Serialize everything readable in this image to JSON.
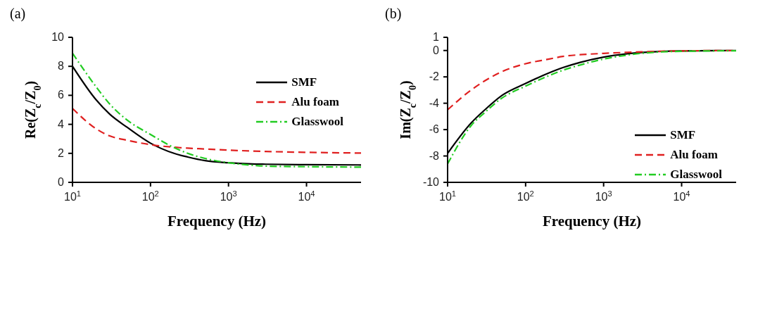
{
  "chart_data": [
    {
      "type": "line",
      "title": "(a)",
      "xlabel": "Frequency (Hz)",
      "ylabel": "Re(Z$_{c}$/Z$_{0}$)",
      "log": "x",
      "legend": "top right",
      "marker": "none",
      "xlim": [
        10,
        50000
      ],
      "xticks": [
        {
          "value": 10,
          "label": "10$^{1}$"
        },
        {
          "value": 100,
          "label": "10$^{2}$"
        },
        {
          "value": 1000,
          "label": "10$^{3}$"
        },
        {
          "value": 10000,
          "label": "10$^{4}$"
        }
      ],
      "ylim": [
        0,
        10
      ],
      "yticks": [
        0,
        2,
        4,
        6,
        8,
        10
      ],
      "x": [
        10,
        20,
        30,
        50,
        100,
        200,
        300,
        500,
        1000,
        2000,
        3000,
        10000,
        50000
      ],
      "series": [
        {
          "name": "SMF",
          "color": "#000000",
          "line_style": "solid",
          "values": [
            8.0,
            5.7,
            4.7,
            3.8,
            2.7,
            2.0,
            1.75,
            1.5,
            1.35,
            1.27,
            1.25,
            1.22,
            1.2
          ]
        },
        {
          "name": "Alu foam",
          "color": "#e02020",
          "line_style": "dashed",
          "values": [
            5.1,
            3.7,
            3.2,
            2.9,
            2.6,
            2.42,
            2.36,
            2.3,
            2.22,
            2.16,
            2.13,
            2.07,
            2.02
          ]
        },
        {
          "name": "Glasswool",
          "color": "#22cc22",
          "line_style": "dashdot",
          "values": [
            8.9,
            6.6,
            5.4,
            4.3,
            3.3,
            2.4,
            2.0,
            1.65,
            1.35,
            1.18,
            1.12,
            1.08,
            1.05
          ]
        }
      ]
    },
    {
      "type": "line",
      "title": "(b)",
      "xlabel": "Frequency (Hz)",
      "ylabel": "Im(Z$_{c}$/Z$_{0}$)",
      "log": "x",
      "legend": "bottom right",
      "marker": "none",
      "xlim": [
        10,
        50000
      ],
      "xticks": [
        {
          "value": 10,
          "label": "10$^{1}$"
        },
        {
          "value": 100,
          "label": "10$^{2}$"
        },
        {
          "value": 1000,
          "label": "10$^{3}$"
        },
        {
          "value": 10000,
          "label": "10$^{4}$"
        }
      ],
      "ylim": [
        -10,
        1
      ],
      "yticks": [
        -10,
        -8,
        -6,
        -4,
        -2,
        0,
        1
      ],
      "x": [
        10,
        20,
        30,
        50,
        100,
        200,
        300,
        500,
        1000,
        2000,
        3000,
        5000,
        10000,
        50000
      ],
      "series": [
        {
          "name": "SMF",
          "color": "#000000",
          "line_style": "solid",
          "values": [
            -7.8,
            -5.5,
            -4.5,
            -3.4,
            -2.5,
            -1.7,
            -1.3,
            -0.9,
            -0.5,
            -0.25,
            -0.15,
            -0.08,
            -0.03,
            0
          ]
        },
        {
          "name": "Alu foam",
          "color": "#e02020",
          "line_style": "dashed",
          "values": [
            -4.5,
            -3.0,
            -2.3,
            -1.6,
            -1.0,
            -0.65,
            -0.45,
            -0.32,
            -0.22,
            -0.14,
            -0.1,
            -0.06,
            -0.03,
            0
          ]
        },
        {
          "name": "Glasswool",
          "color": "#22cc22",
          "line_style": "dashdot",
          "values": [
            -8.6,
            -5.7,
            -4.7,
            -3.6,
            -2.7,
            -1.9,
            -1.5,
            -1.1,
            -0.65,
            -0.35,
            -0.22,
            -0.12,
            -0.06,
            -0.02
          ]
        }
      ]
    }
  ]
}
